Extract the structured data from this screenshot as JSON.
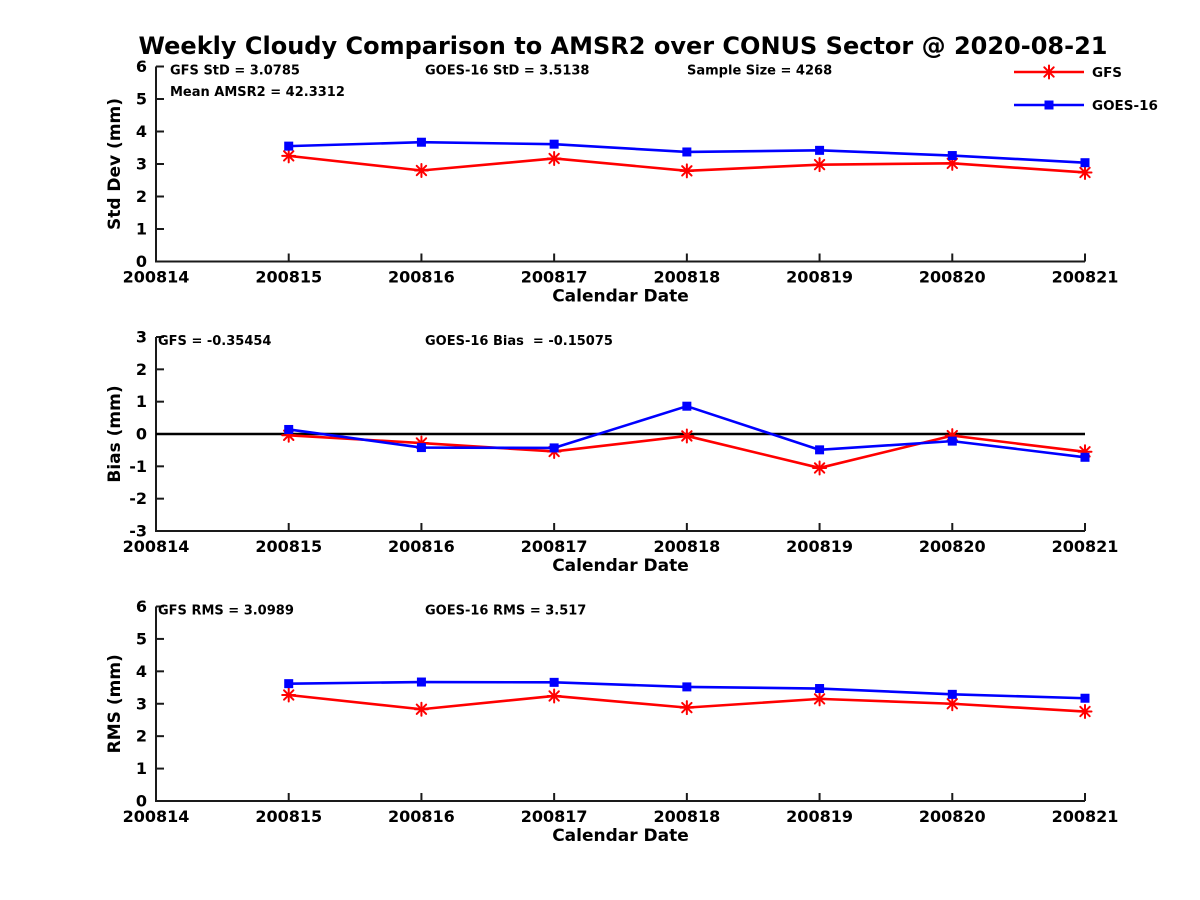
{
  "title": "Weekly Cloudy Comparison to AMSR2 over CONUS Sector @ 2020-08-21",
  "colors": {
    "gfs": "#ff0000",
    "goes16": "#0000ff",
    "axis": "#1a1a1a",
    "zero_line": "#000000",
    "text": "#000000"
  },
  "legend": {
    "position": "top-right-outside-plot",
    "items": [
      {
        "label": "GFS",
        "color_key": "gfs",
        "marker": "asterisk"
      },
      {
        "label": "GOES-16",
        "color_key": "goes16",
        "marker": "square"
      }
    ]
  },
  "chart_data": [
    {
      "type": "line",
      "panel": "stddev",
      "ylabel": "Std Dev (mm)",
      "xlabel": "Calendar Date",
      "ylim": [
        0,
        6
      ],
      "yticks": [
        0,
        1,
        2,
        3,
        4,
        5,
        6
      ],
      "x_categories": [
        "200814",
        "200815",
        "200816",
        "200817",
        "200818",
        "200819",
        "200820",
        "200821"
      ],
      "grid": false,
      "zero_line": false,
      "annotations": [
        {
          "text": "GFS StD = 3.0785",
          "col": 0,
          "row": 0
        },
        {
          "text": "GOES-16 StD = 3.5138",
          "col": 1,
          "row": 0
        },
        {
          "text": "Sample Size = 4268",
          "col": 2,
          "row": 0
        },
        {
          "text": "Mean AMSR2 = 42.3312",
          "col": 0,
          "row": 1
        }
      ],
      "series": [
        {
          "name": "GFS",
          "color_key": "gfs",
          "marker": "asterisk",
          "x": [
            "200815",
            "200816",
            "200817",
            "200818",
            "200819",
            "200820",
            "200821"
          ],
          "values": [
            3.25,
            2.8,
            3.17,
            2.79,
            2.98,
            3.02,
            2.74
          ]
        },
        {
          "name": "GOES-16",
          "color_key": "goes16",
          "marker": "square",
          "x": [
            "200815",
            "200816",
            "200817",
            "200818",
            "200819",
            "200820",
            "200821"
          ],
          "values": [
            3.55,
            3.67,
            3.61,
            3.37,
            3.42,
            3.26,
            3.04
          ]
        }
      ]
    },
    {
      "type": "line",
      "panel": "bias",
      "ylabel": "Bias (mm)",
      "xlabel": "Calendar Date",
      "ylim": [
        -3,
        3
      ],
      "yticks": [
        -3,
        -2,
        -1,
        0,
        1,
        2,
        3
      ],
      "x_categories": [
        "200814",
        "200815",
        "200816",
        "200817",
        "200818",
        "200819",
        "200820",
        "200821"
      ],
      "grid": false,
      "zero_line": true,
      "annotations": [
        {
          "text": "GFS = -0.35454",
          "col": 0,
          "row": 0
        },
        {
          "text": "GOES-16 Bias  = -0.15075",
          "col": 1,
          "row": 0
        }
      ],
      "series": [
        {
          "name": "GFS",
          "color_key": "gfs",
          "marker": "asterisk",
          "x": [
            "200815",
            "200816",
            "200817",
            "200818",
            "200819",
            "200820",
            "200821"
          ],
          "values": [
            -0.04,
            -0.28,
            -0.54,
            -0.06,
            -1.05,
            -0.05,
            -0.55
          ]
        },
        {
          "name": "GOES-16",
          "color_key": "goes16",
          "marker": "square",
          "x": [
            "200815",
            "200816",
            "200817",
            "200818",
            "200819",
            "200820",
            "200821"
          ],
          "values": [
            0.14,
            -0.42,
            -0.43,
            0.86,
            -0.49,
            -0.22,
            -0.72
          ]
        }
      ]
    },
    {
      "type": "line",
      "panel": "rms",
      "ylabel": "RMS (mm)",
      "xlabel": "Calendar Date",
      "ylim": [
        0,
        6
      ],
      "yticks": [
        0,
        1,
        2,
        3,
        4,
        5,
        6
      ],
      "x_categories": [
        "200814",
        "200815",
        "200816",
        "200817",
        "200818",
        "200819",
        "200820",
        "200821"
      ],
      "grid": false,
      "zero_line": false,
      "annotations": [
        {
          "text": "GFS RMS = 3.0989",
          "col": 0,
          "row": 0
        },
        {
          "text": "GOES-16 RMS = 3.517",
          "col": 1,
          "row": 0
        }
      ],
      "series": [
        {
          "name": "GFS",
          "color_key": "gfs",
          "marker": "asterisk",
          "x": [
            "200815",
            "200816",
            "200817",
            "200818",
            "200819",
            "200820",
            "200821"
          ],
          "values": [
            3.27,
            2.83,
            3.24,
            2.88,
            3.15,
            3.0,
            2.76
          ]
        },
        {
          "name": "GOES-16",
          "color_key": "goes16",
          "marker": "square",
          "x": [
            "200815",
            "200816",
            "200817",
            "200818",
            "200819",
            "200820",
            "200821"
          ],
          "values": [
            3.62,
            3.67,
            3.66,
            3.52,
            3.47,
            3.29,
            3.17
          ]
        }
      ]
    }
  ]
}
